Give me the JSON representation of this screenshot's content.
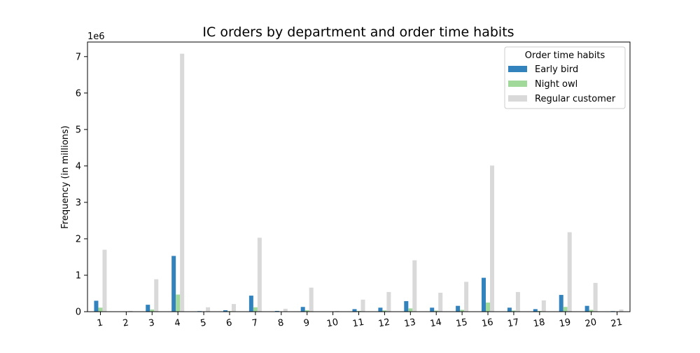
{
  "chart_data": {
    "type": "bar",
    "title": "IC orders by department and order time habits",
    "xlabel": "",
    "ylabel": "Frequency (in millions)",
    "y_offset_label": "1e6",
    "ylim": [
      0,
      7400000
    ],
    "yticks": [
      0,
      1000000,
      2000000,
      3000000,
      4000000,
      5000000,
      6000000,
      7000000
    ],
    "ytick_labels": [
      "0",
      "1",
      "2",
      "3",
      "4",
      "5",
      "6",
      "7"
    ],
    "categories": [
      "1",
      "2",
      "3",
      "4",
      "5",
      "6",
      "7",
      "8",
      "9",
      "10",
      "11",
      "12",
      "13",
      "14",
      "15",
      "16",
      "17",
      "18",
      "19",
      "20",
      "21"
    ],
    "legend": {
      "title": "Order time habits",
      "position": "top-right"
    },
    "grid": false,
    "series": [
      {
        "name": "Early bird",
        "color": "#3182bd",
        "values": [
          300000,
          8000,
          190000,
          1530000,
          15000,
          40000,
          440000,
          20000,
          130000,
          5000,
          70000,
          110000,
          290000,
          110000,
          160000,
          930000,
          110000,
          70000,
          460000,
          160000,
          15000
        ]
      },
      {
        "name": "Night owl",
        "color": "#a1d99b",
        "values": [
          110000,
          3000,
          60000,
          470000,
          5000,
          15000,
          120000,
          6000,
          40000,
          2000,
          20000,
          35000,
          90000,
          30000,
          50000,
          250000,
          30000,
          20000,
          130000,
          50000,
          5000
        ]
      },
      {
        "name": "Regular customer",
        "color": "#d9d9d9",
        "values": [
          1700000,
          22000,
          890000,
          7080000,
          120000,
          210000,
          2030000,
          80000,
          660000,
          20000,
          330000,
          540000,
          1410000,
          520000,
          820000,
          4010000,
          540000,
          310000,
          2180000,
          790000,
          60000
        ]
      }
    ]
  }
}
